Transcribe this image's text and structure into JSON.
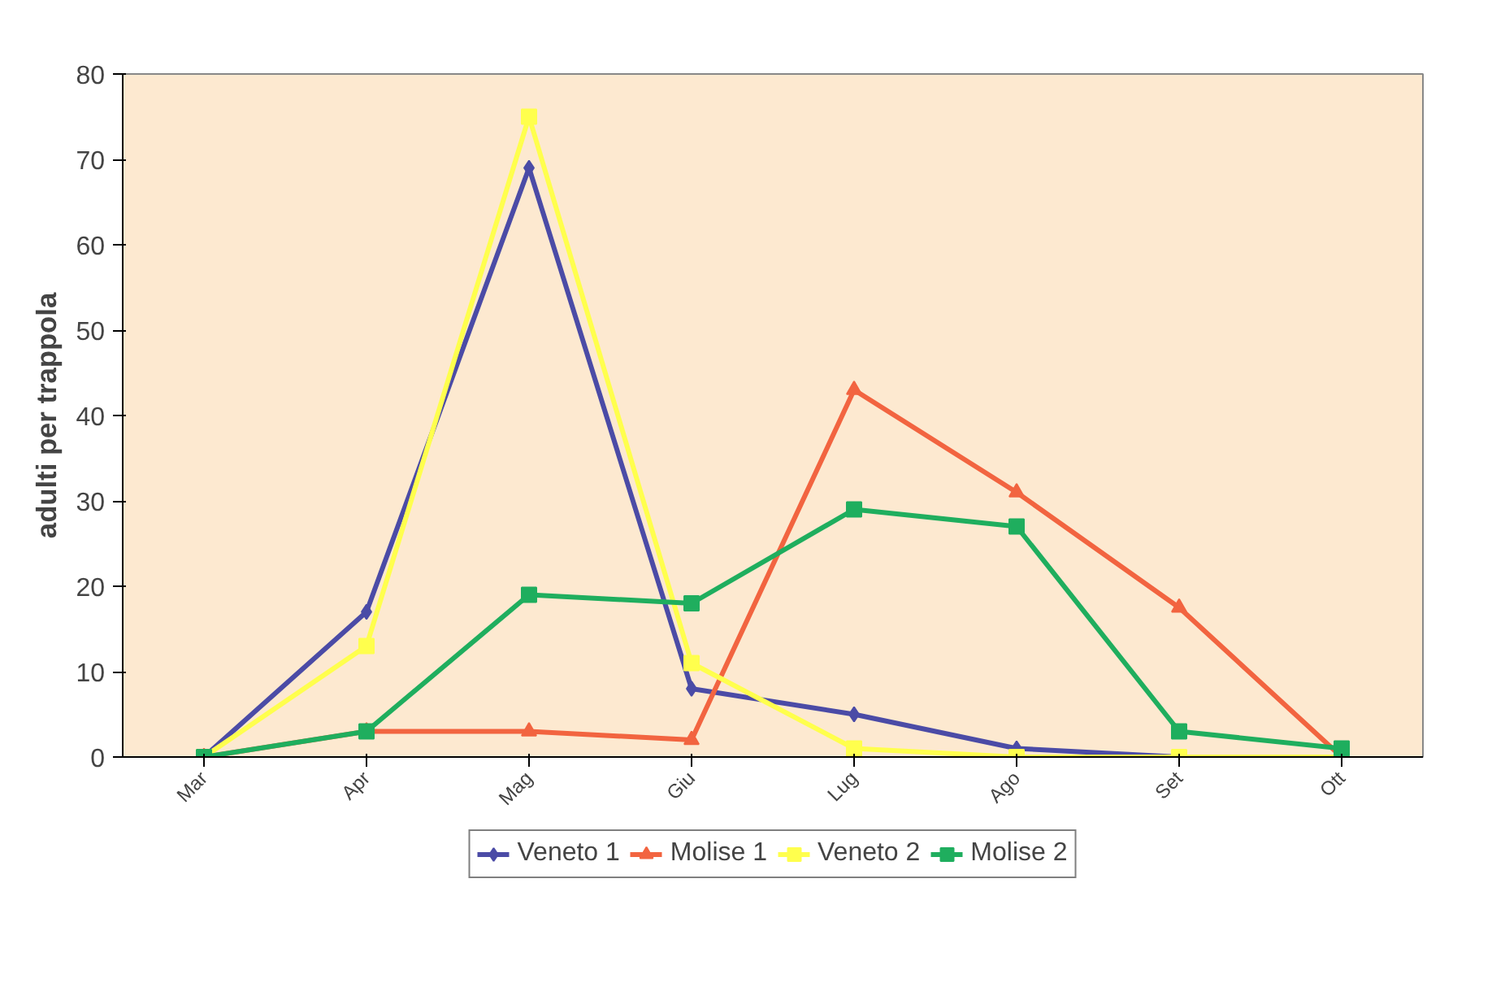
{
  "chart_data": {
    "type": "line",
    "ylabel": "adulti per trappola",
    "categories": [
      "Mar",
      "Apr",
      "Mag",
      "Giu",
      "Lug",
      "Ago",
      "Set",
      "Ott"
    ],
    "ylim": [
      0,
      80
    ],
    "yticks": [
      0,
      10,
      20,
      30,
      40,
      50,
      60,
      70,
      80
    ],
    "grid": false,
    "legend": "bottom",
    "series": [
      {
        "name": "Veneto 1",
        "color": "#4b4ba6",
        "marker": "diamond",
        "values": [
          0,
          17,
          69,
          8,
          5,
          1,
          0,
          0
        ]
      },
      {
        "name": "Molise 1",
        "color": "#f26440",
        "marker": "triangle",
        "values": [
          0,
          3,
          3,
          2,
          43,
          31,
          17.5,
          0
        ]
      },
      {
        "name": "Veneto 2",
        "color": "#ffff4d",
        "marker": "square",
        "values": [
          0,
          13,
          75,
          11,
          1,
          0,
          0,
          0
        ]
      },
      {
        "name": "Molise 2",
        "color": "#1fae5e",
        "marker": "square",
        "values": [
          0,
          3,
          19,
          18,
          29,
          27,
          3,
          1
        ]
      }
    ]
  }
}
